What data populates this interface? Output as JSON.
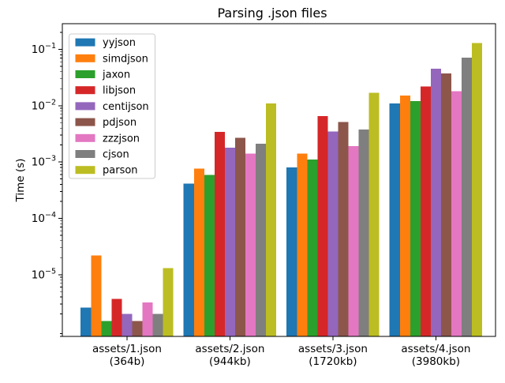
{
  "chart_data": {
    "type": "bar",
    "title": "Parsing .json files",
    "xlabel": "",
    "ylabel": "Time (s)",
    "yscale": "log",
    "ylim": [
      8e-07,
      0.285
    ],
    "grid": false,
    "legend_position": "upper left",
    "y_ticks": [
      0.1,
      0.01,
      0.001,
      0.0001,
      1e-05
    ],
    "categories": [
      "assets/1.json\n(364b)",
      "assets/2.json\n(944kb)",
      "assets/3.json\n(1720kb)",
      "assets/4.json\n(3980kb)"
    ],
    "series": [
      {
        "name": "yyjson",
        "color": "#1f77b4",
        "values": [
          2.6e-06,
          0.00041,
          0.0008,
          0.011
        ]
      },
      {
        "name": "simdjson",
        "color": "#ff7f0e",
        "values": [
          2.2e-05,
          0.00076,
          0.0014,
          0.015
        ]
      },
      {
        "name": "jaxon",
        "color": "#2ca02c",
        "values": [
          1.5e-06,
          0.00059,
          0.0011,
          0.012
        ]
      },
      {
        "name": "libjson",
        "color": "#d62728",
        "values": [
          3.7e-06,
          0.0034,
          0.0065,
          0.022
        ]
      },
      {
        "name": "centijson",
        "color": "#9467bd",
        "values": [
          2e-06,
          0.0018,
          0.0035,
          0.045
        ]
      },
      {
        "name": "pdjson",
        "color": "#8c564b",
        "values": [
          1.5e-06,
          0.0027,
          0.0051,
          0.037
        ]
      },
      {
        "name": "zzzjson",
        "color": "#e377c2",
        "values": [
          3.2e-06,
          0.0014,
          0.0019,
          0.018
        ]
      },
      {
        "name": "cjson",
        "color": "#7f7f7f",
        "values": [
          2e-06,
          0.0021,
          0.0038,
          0.071
        ]
      },
      {
        "name": "parson",
        "color": "#bcbd22",
        "values": [
          1.3e-05,
          0.011,
          0.017,
          0.13
        ]
      }
    ],
    "legend_border_color": "#cccccc",
    "axis_color": "#000000",
    "background_color": "#ffffff"
  }
}
